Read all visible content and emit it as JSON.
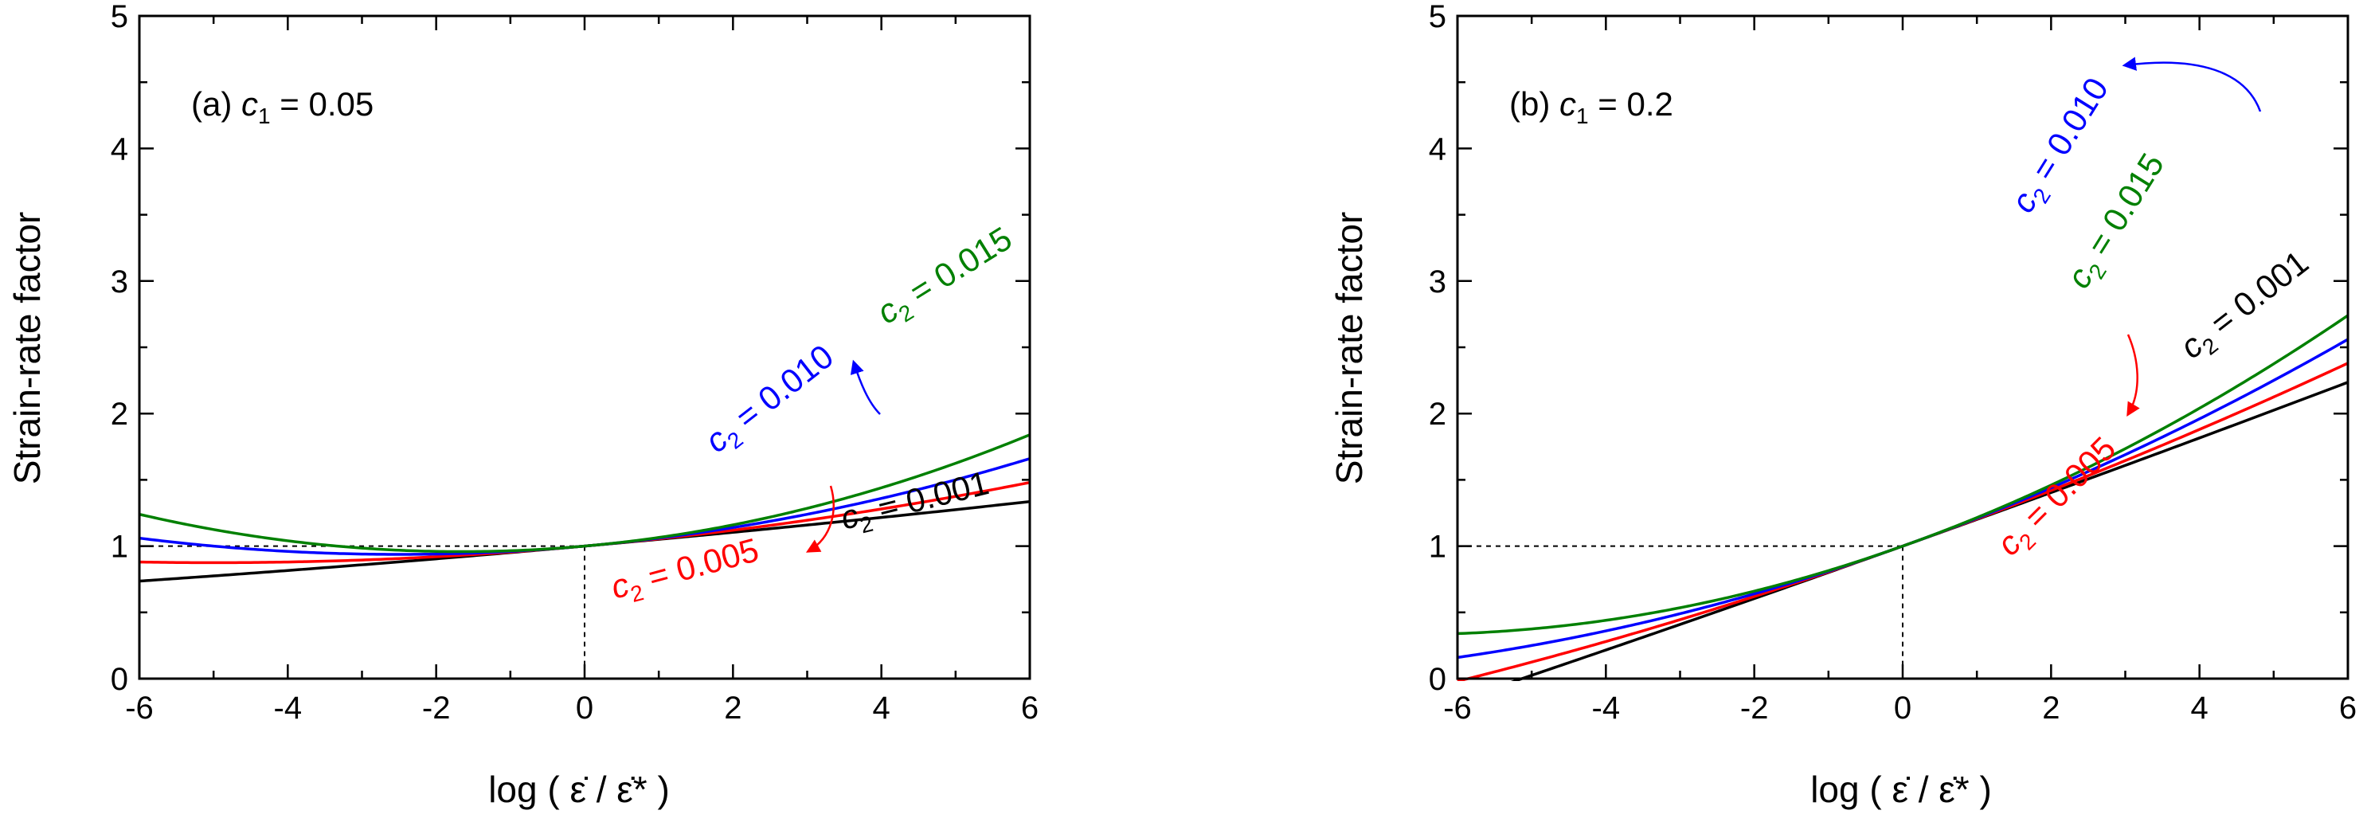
{
  "chart_data": [
    {
      "type": "line",
      "panel": "a",
      "title_prefix": "(a)",
      "title_var": "c",
      "title_sub": "1",
      "title_value": " = 0.05",
      "xlabel": "log ( ε̇ / ε̇* )",
      "ylabel": "Strain-rate factor",
      "xlim": [
        -6,
        6
      ],
      "ylim": [
        0,
        5
      ],
      "x_ticks": [
        -6,
        -4,
        -2,
        0,
        2,
        4,
        6
      ],
      "y_ticks": [
        0,
        1,
        2,
        3,
        4,
        5
      ],
      "x_tick_labels": [
        "-6",
        "-4",
        "-2",
        "0",
        "2",
        "4",
        "6"
      ],
      "y_tick_labels": [
        "0",
        "1",
        "2",
        "3",
        "4",
        "5"
      ],
      "c1": 0.05,
      "reference_lines": {
        "x": 0,
        "y": 1
      },
      "series": [
        {
          "name": "c2 = 0.001",
          "c2": 0.001,
          "color": "#000000",
          "label_var": "c",
          "label_sub": "2",
          "label_value": " = 0.001"
        },
        {
          "name": "c2 = 0.005",
          "c2": 0.005,
          "color": "#ff0000",
          "label_var": "c",
          "label_sub": "2",
          "label_value": " = 0.005"
        },
        {
          "name": "c2 = 0.010",
          "c2": 0.01,
          "color": "#0000ff",
          "label_var": "c",
          "label_sub": "2",
          "label_value": " = 0.010"
        },
        {
          "name": "c2 = 0.015",
          "c2": 0.015,
          "color": "#008000",
          "label_var": "c",
          "label_sub": "2",
          "label_value": " = 0.015"
        }
      ]
    },
    {
      "type": "line",
      "panel": "b",
      "title_prefix": "(b)",
      "title_var": "c",
      "title_sub": "1",
      "title_value": " = 0.2",
      "xlabel": "log ( ε̇ / ε̇* )",
      "ylabel": "Strain-rate factor",
      "xlim": [
        -6,
        6
      ],
      "ylim": [
        0,
        5
      ],
      "x_ticks": [
        -6,
        -4,
        -2,
        0,
        2,
        4,
        6
      ],
      "y_ticks": [
        0,
        1,
        2,
        3,
        4,
        5
      ],
      "x_tick_labels": [
        "-6",
        "-4",
        "-2",
        "0",
        "2",
        "4",
        "6"
      ],
      "y_tick_labels": [
        "0",
        "1",
        "2",
        "3",
        "4",
        "5"
      ],
      "c1": 0.2,
      "reference_lines": {
        "x": 0,
        "y": 1
      },
      "series": [
        {
          "name": "c2 = 0.001",
          "c2": 0.001,
          "color": "#000000",
          "label_var": "c",
          "label_sub": "2",
          "label_value": " = 0.001"
        },
        {
          "name": "c2 = 0.005",
          "c2": 0.005,
          "color": "#ff0000",
          "label_var": "c",
          "label_sub": "2",
          "label_value": " = 0.005"
        },
        {
          "name": "c2 = 0.010",
          "c2": 0.01,
          "color": "#0000ff",
          "label_var": "c",
          "label_sub": "2",
          "label_value": " = 0.010"
        },
        {
          "name": "c2 = 0.015",
          "c2": 0.015,
          "color": "#008000",
          "label_var": "c",
          "label_sub": "2",
          "label_value": " = 0.015"
        }
      ]
    }
  ]
}
